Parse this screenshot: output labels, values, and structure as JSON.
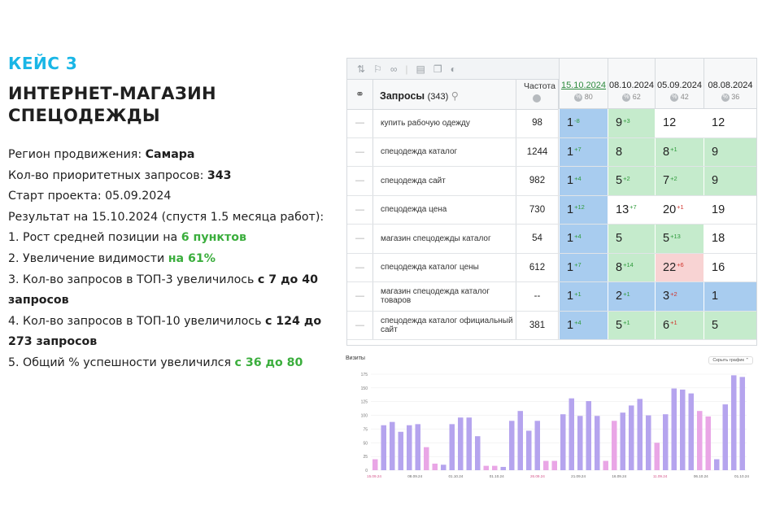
{
  "case": {
    "label": "КЕЙС 3",
    "title_line1": "ИНТЕРНЕТ-МАГАЗИН",
    "title_line2": "СПЕЦОДЕЖДЫ"
  },
  "info": {
    "region_prefix": "Регион продвижения: ",
    "region_value": "Самара",
    "queries_prefix": "Кол-во приоритетных запросов: ",
    "queries_value": "343",
    "start": "Старт проекта: 05.09.2024",
    "result": "Результат на 15.10.2024 (спустя 1.5 месяца работ):",
    "item1_prefix": "1. Рост средней позиции на ",
    "item1_value": "6 пунктов",
    "item2_prefix": "2. Увеличение видимости ",
    "item2_value": "на 61%",
    "item3_prefix": "3. Кол-во запросов в ТОП-3 увеличилось ",
    "item3_value": "с 7 до 40 запросов",
    "item4_prefix": "4. Кол-во запросов в ТОП-10 увеличилось ",
    "item4_value": "с 124 до 273 запросов",
    "item5_prefix": "5. Общий % успешности увеличился ",
    "item5_value": "с 36 до 80"
  },
  "table": {
    "queries_header": "Запросы",
    "queries_count": "(343)",
    "freq_header": "Частота",
    "dates": [
      {
        "date": "15.10.2024",
        "pct": "80",
        "active": true
      },
      {
        "date": "08.10.2024",
        "pct": "62",
        "active": false
      },
      {
        "date": "05.09.2024",
        "pct": "42",
        "active": false
      },
      {
        "date": "08.08.2024",
        "pct": "36",
        "active": false
      }
    ],
    "rows": [
      {
        "query": "купить рабочую одежду",
        "freq": "98",
        "pos": [
          [
            "1",
            "-8",
            "up",
            "blue"
          ],
          [
            "9",
            "+3",
            "up",
            "green"
          ],
          [
            "12",
            "",
            "",
            "white"
          ],
          [
            "12",
            "",
            "",
            "white"
          ]
        ]
      },
      {
        "query": "спецодежда каталог",
        "freq": "1244",
        "pos": [
          [
            "1",
            "+7",
            "up",
            "blue"
          ],
          [
            "8",
            "",
            "",
            "green"
          ],
          [
            "8",
            "+1",
            "up",
            "green"
          ],
          [
            "9",
            "",
            "",
            "green"
          ]
        ]
      },
      {
        "query": "спецодежда сайт",
        "freq": "982",
        "pos": [
          [
            "1",
            "+4",
            "up",
            "blue"
          ],
          [
            "5",
            "+2",
            "up",
            "green"
          ],
          [
            "7",
            "+2",
            "up",
            "green"
          ],
          [
            "9",
            "",
            "",
            "green"
          ]
        ]
      },
      {
        "query": "спецодежда цена",
        "freq": "730",
        "pos": [
          [
            "1",
            "+12",
            "up",
            "blue"
          ],
          [
            "13",
            "+7",
            "up",
            "white"
          ],
          [
            "20",
            "+1",
            "down",
            "white"
          ],
          [
            "19",
            "",
            "",
            "white"
          ]
        ]
      },
      {
        "query": "магазин спецодежды каталог",
        "freq": "54",
        "pos": [
          [
            "1",
            "+4",
            "up",
            "blue"
          ],
          [
            "5",
            "",
            "",
            "green"
          ],
          [
            "5",
            "+13",
            "up",
            "green"
          ],
          [
            "18",
            "",
            "",
            "white"
          ]
        ]
      },
      {
        "query": "спецодежда каталог цены",
        "freq": "612",
        "pos": [
          [
            "1",
            "+7",
            "up",
            "blue"
          ],
          [
            "8",
            "+14",
            "up",
            "green"
          ],
          [
            "22",
            "+6",
            "down",
            "red"
          ],
          [
            "16",
            "",
            "",
            "white"
          ]
        ]
      },
      {
        "query": "магазин спецодежда каталог товаров",
        "freq": "--",
        "pos": [
          [
            "1",
            "+1",
            "up",
            "blue"
          ],
          [
            "2",
            "+1",
            "up",
            "blue"
          ],
          [
            "3",
            "+2",
            "down",
            "blue"
          ],
          [
            "1",
            "",
            "",
            "blue"
          ]
        ]
      },
      {
        "query": "спецодежда каталог официальный сайт",
        "freq": "381",
        "pos": [
          [
            "1",
            "+4",
            "up",
            "blue"
          ],
          [
            "5",
            "+1",
            "up",
            "green"
          ],
          [
            "6",
            "+1",
            "down",
            "green"
          ],
          [
            "5",
            "",
            "",
            "green"
          ]
        ]
      }
    ]
  },
  "chart_data": {
    "type": "bar",
    "title": "Визиты",
    "button": "Скрыть график",
    "y_ticks": [
      "175",
      "150",
      "125",
      "100",
      "75",
      "50",
      "25",
      "0"
    ],
    "x_labels": [
      "15.09.24",
      "08.09.24",
      "01.10.24",
      "01.10.24",
      "26.09.24",
      "21.09.24",
      "16.09.24",
      "11.09.24",
      "06.10.24",
      "01.10.24"
    ],
    "ylim": [
      0,
      175
    ],
    "values": [
      20,
      82,
      88,
      70,
      82,
      84,
      42,
      12,
      10,
      84,
      96,
      96,
      62,
      8,
      8,
      6,
      90,
      108,
      72,
      90,
      17,
      17,
      102,
      131,
      99,
      126,
      99,
      17,
      90,
      105,
      118,
      130,
      100,
      50,
      102,
      149,
      147,
      140,
      108,
      98,
      20,
      120,
      173,
      170
    ],
    "weekend": [
      true,
      false,
      false,
      false,
      false,
      false,
      true,
      true,
      false,
      false,
      false,
      false,
      false,
      true,
      true,
      false,
      false,
      false,
      false,
      false,
      true,
      true,
      false,
      false,
      false,
      false,
      false,
      true,
      true,
      false,
      false,
      false,
      false,
      true,
      false,
      false,
      false,
      false,
      true,
      true,
      false,
      false,
      false,
      false
    ],
    "colors": {
      "weekday": "#b5a4ee",
      "weekend": "#e9a6e6"
    }
  },
  "colors": {
    "accent_blue": "#19b6e6",
    "green": "#3bae3d",
    "cell_blue": "#a8ccef",
    "cell_green": "#c5ebcc",
    "cell_red": "#f8d3d3"
  }
}
